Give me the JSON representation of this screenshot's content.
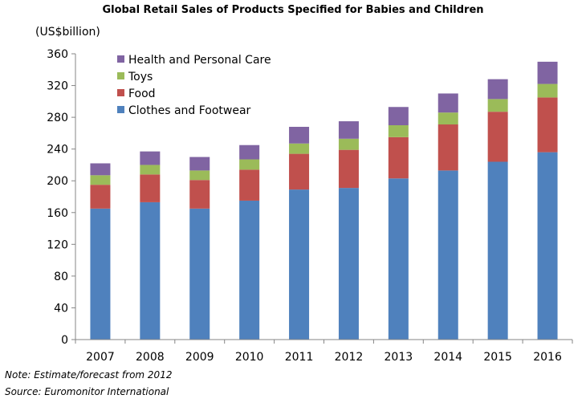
{
  "chart_data": {
    "type": "bar",
    "stacked": true,
    "title": "Global Retail Sales of Products Specified for Babies and Children",
    "ylabel": "(US$billion)",
    "xlabel": "",
    "ylim": [
      0,
      360
    ],
    "yticks": [
      0,
      40,
      80,
      120,
      160,
      200,
      240,
      280,
      320,
      360
    ],
    "grid": false,
    "legend": "top-left",
    "categories": [
      "2007",
      "2008",
      "2009",
      "2010",
      "2011",
      "2012",
      "2013",
      "2014",
      "2015",
      "2016"
    ],
    "series": [
      {
        "name": "Clothes and Footwear",
        "color": "#4f81bd",
        "values": [
          165,
          173,
          165,
          175,
          189,
          191,
          203,
          213,
          224,
          236
        ]
      },
      {
        "name": "Food",
        "color": "#c0504d",
        "values": [
          30,
          35,
          36,
          39,
          45,
          48,
          52,
          58,
          63,
          69
        ]
      },
      {
        "name": "Toys",
        "color": "#9bbb59",
        "values": [
          12,
          12,
          12,
          13,
          13,
          14,
          15,
          15,
          16,
          17
        ]
      },
      {
        "name": "Health and Personal Care",
        "color": "#8064a2",
        "values": [
          15,
          17,
          17,
          18,
          21,
          22,
          23,
          24,
          25,
          28
        ]
      }
    ]
  },
  "notes": {
    "note": "Note: Estimate/forecast from 2012",
    "source": "Source: Euromonitor International"
  }
}
